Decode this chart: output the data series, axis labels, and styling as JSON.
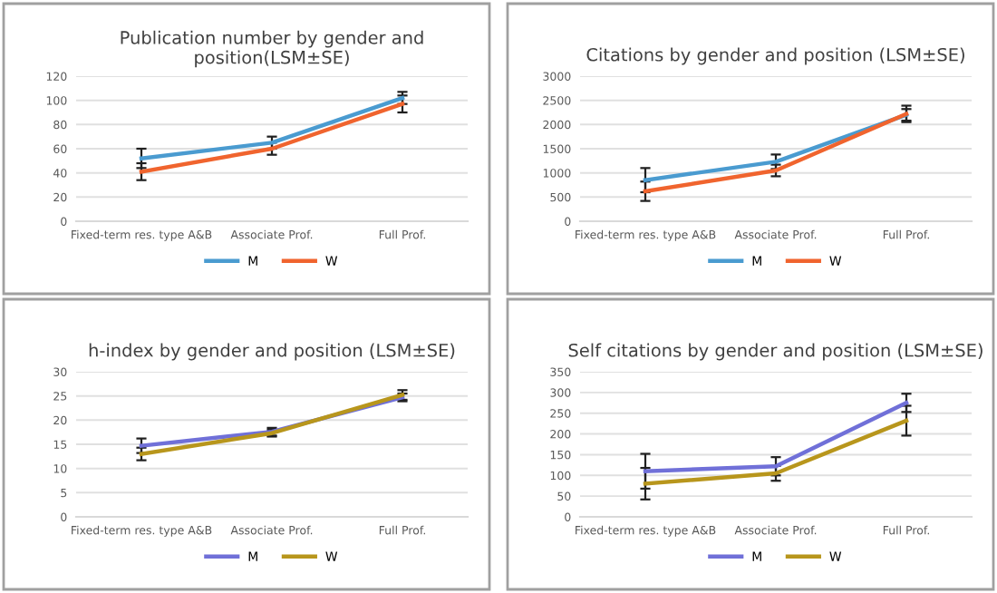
{
  "chart_data": [
    {
      "type": "line",
      "title": "Publication number by gender and\nposition(LSM±SE)",
      "categories": [
        "Fixed-term res. type A&B",
        "Associate Prof.",
        "Full Prof."
      ],
      "ylim": [
        0,
        120
      ],
      "yticks": [
        0,
        20,
        40,
        60,
        80,
        100,
        120
      ],
      "grid": "y",
      "legend": "bottom",
      "marker": "none",
      "series": [
        {
          "name": "M",
          "color": "#4a9bd0",
          "values": [
            52,
            65,
            102
          ],
          "errors": [
            8,
            5,
            5
          ]
        },
        {
          "name": "W",
          "color": "#f0642e",
          "values": [
            41,
            60,
            97
          ],
          "errors": [
            7,
            5,
            7
          ]
        }
      ]
    },
    {
      "type": "line",
      "title": "Citations by gender and position (LSM±SE)",
      "categories": [
        "Fixed-term res. type A&B",
        "Associate Prof.",
        "Full Prof."
      ],
      "ylim": [
        0,
        3000
      ],
      "yticks": [
        0,
        500,
        1000,
        1500,
        2000,
        2500,
        3000
      ],
      "grid": "y",
      "legend": "bottom",
      "marker": "none",
      "series": [
        {
          "name": "M",
          "color": "#4a9bd0",
          "values": [
            850,
            1230,
            2200
          ],
          "errors": [
            250,
            150,
            120
          ]
        },
        {
          "name": "W",
          "color": "#f0642e",
          "values": [
            620,
            1050,
            2220
          ],
          "errors": [
            200,
            120,
            170
          ]
        }
      ]
    },
    {
      "type": "line",
      "title": "h-index by gender and position (LSM±SE)",
      "categories": [
        "Fixed-term res. type A&B",
        "Associate Prof.",
        "Full Prof."
      ],
      "ylim": [
        0,
        30
      ],
      "yticks": [
        0,
        5,
        10,
        15,
        20,
        25,
        30
      ],
      "grid": "y",
      "legend": "bottom",
      "marker": "none",
      "series": [
        {
          "name": "M",
          "color": "#7070d8",
          "values": [
            14.7,
            17.6,
            24.7
          ],
          "errors": [
            1.5,
            0.8,
            0.8
          ]
        },
        {
          "name": "W",
          "color": "#b8961c",
          "values": [
            13,
            17.3,
            25.2
          ],
          "errors": [
            1.3,
            0.7,
            1
          ]
        }
      ]
    },
    {
      "type": "line",
      "title": "Self citations by gender and position (LSM±SE)",
      "categories": [
        "Fixed-term res. type A&B",
        "Associate Prof.",
        "Full Prof."
      ],
      "ylim": [
        0,
        350
      ],
      "yticks": [
        0,
        50,
        100,
        150,
        200,
        250,
        300,
        350
      ],
      "grid": "y",
      "legend": "bottom",
      "marker": "none",
      "series": [
        {
          "name": "M",
          "color": "#7070d8",
          "values": [
            110,
            122,
            275
          ],
          "errors": [
            42,
            22,
            22
          ]
        },
        {
          "name": "W",
          "color": "#b8961c",
          "values": [
            80,
            105,
            232
          ],
          "errors": [
            38,
            18,
            36
          ]
        }
      ]
    }
  ]
}
